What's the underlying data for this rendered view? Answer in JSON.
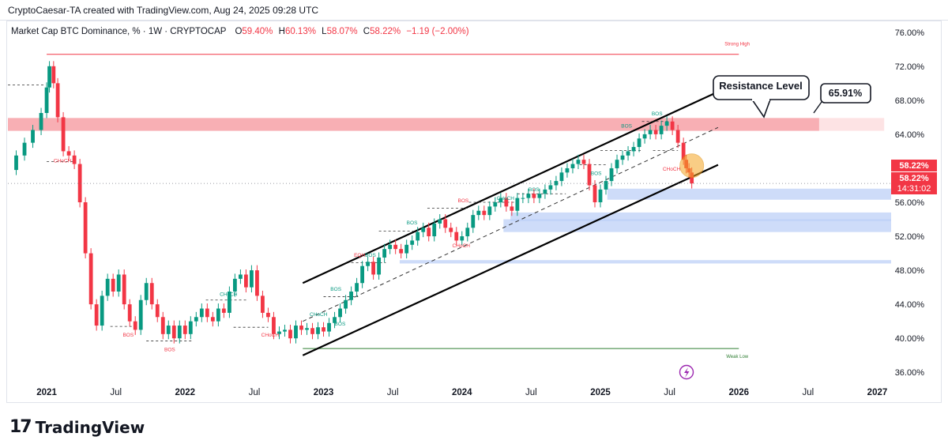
{
  "header": {
    "credit": "CryptoCaesar-TA created with TradingView.com, Aug 24, 2025 09:28 UTC"
  },
  "legend": {
    "symbol": "Market Cap BTC Dominance, % · 1W · CRYPTOCAP",
    "open_label": "O",
    "open": "59.40%",
    "high_label": "H",
    "high": "60.13%",
    "low_label": "L",
    "low": "58.07%",
    "close_label": "C",
    "close": "58.22%",
    "change": "−1.19 (−2.00%)"
  },
  "annotations": {
    "resistance_label": "Resistance Level",
    "resistance_value": "65.91%",
    "strong_high": "Strong High",
    "weak_low": "Weak Low",
    "price_tag_1": "58.22%",
    "price_tag_2": "58.22%",
    "countdown": "14:31:02",
    "structure_labels": [
      {
        "text": "CHoCH",
        "x": 2021.05,
        "y": 60.7,
        "color": "#f23645"
      },
      {
        "text": "BOS",
        "x": 2021.55,
        "y": 40.2,
        "color": "#f23645"
      },
      {
        "text": "BOS",
        "x": 2021.85,
        "y": 38.5,
        "color": "#f23645"
      },
      {
        "text": "CHoCH",
        "x": 2022.25,
        "y": 45.0,
        "color": "#089981"
      },
      {
        "text": "CHoCH",
        "x": 2022.55,
        "y": 40.2,
        "color": "#f23645"
      },
      {
        "text": "CHoCH",
        "x": 2022.9,
        "y": 42.6,
        "color": "#089981"
      },
      {
        "text": "BOS",
        "x": 2023.05,
        "y": 45.6,
        "color": "#089981"
      },
      {
        "text": "BOS",
        "x": 2023.08,
        "y": 41.5,
        "color": "#089981"
      },
      {
        "text": "EQH",
        "x": 2023.22,
        "y": 49.6,
        "color": "#f23645"
      },
      {
        "text": "BOS",
        "x": 2023.3,
        "y": 49.6,
        "color": "#089981"
      },
      {
        "text": "BOS",
        "x": 2023.6,
        "y": 53.4,
        "color": "#089981"
      },
      {
        "text": "BOS",
        "x": 2023.97,
        "y": 56.0,
        "color": "#f23645"
      },
      {
        "text": "CHoCH",
        "x": 2023.93,
        "y": 50.7,
        "color": "#f23645"
      },
      {
        "text": "CHoCH",
        "x": 2024.25,
        "y": 56.3,
        "color": "#089981"
      },
      {
        "text": "BOS",
        "x": 2024.48,
        "y": 57.3,
        "color": "#089981"
      },
      {
        "text": "BOS",
        "x": 2024.93,
        "y": 59.2,
        "color": "#089981"
      },
      {
        "text": "BOS",
        "x": 2025.15,
        "y": 64.8,
        "color": "#089981"
      },
      {
        "text": "BOS",
        "x": 2025.37,
        "y": 66.2,
        "color": "#089981"
      },
      {
        "text": "CHoCH",
        "x": 2025.45,
        "y": 59.7,
        "color": "#f23645"
      }
    ]
  },
  "icons": {
    "lightning": "lightning-icon",
    "logo": "tradingview-logo"
  },
  "footer": {
    "brand": "TradingView"
  },
  "colors": {
    "up": "#089981",
    "down": "#f23645",
    "resistance_zone": "#f7a1a7",
    "demand_zone": "#b9cdf7",
    "channel": "#000000",
    "strong_high_line": "#f23645",
    "weak_low_line": "#2e7d32",
    "highlight_circle": "#f5a623",
    "price_tag": "#f23645"
  },
  "chart_data": {
    "type": "line",
    "title": "Market Cap BTC Dominance, % · 1W · CRYPTOCAP",
    "xlabel": "",
    "ylabel": "",
    "xlim": [
      2020.72,
      2027.1
    ],
    "ylim": [
      35,
      77
    ],
    "x_ticks": [
      {
        "label": "2021",
        "x": 2021.0,
        "bold": true
      },
      {
        "label": "Jul",
        "x": 2021.5,
        "bold": false
      },
      {
        "label": "2022",
        "x": 2022.0,
        "bold": true
      },
      {
        "label": "Jul",
        "x": 2022.5,
        "bold": false
      },
      {
        "label": "2023",
        "x": 2023.0,
        "bold": true
      },
      {
        "label": "Jul",
        "x": 2023.5,
        "bold": false
      },
      {
        "label": "2024",
        "x": 2024.0,
        "bold": true
      },
      {
        "label": "Jul",
        "x": 2024.5,
        "bold": false
      },
      {
        "label": "2025",
        "x": 2025.0,
        "bold": true
      },
      {
        "label": "Jul",
        "x": 2025.5,
        "bold": false
      },
      {
        "label": "2026",
        "x": 2026.0,
        "bold": true
      },
      {
        "label": "Jul",
        "x": 2026.5,
        "bold": false
      },
      {
        "label": "2027",
        "x": 2027.0,
        "bold": true
      }
    ],
    "y_ticks": [
      "76.00%",
      "72.00%",
      "68.00%",
      "64.00%",
      "60.00%",
      "56.00%",
      "52.00%",
      "48.00%",
      "44.00%",
      "40.00%",
      "36.00%"
    ],
    "y_tick_values": [
      76,
      72,
      68,
      64,
      60,
      56,
      52,
      48,
      44,
      40,
      36
    ],
    "series": [
      {
        "points": [
          [
            2020.72,
            59.8
          ],
          [
            2020.78,
            61.5
          ],
          [
            2020.84,
            63.0
          ],
          [
            2020.9,
            64.5
          ],
          [
            2020.96,
            66.5
          ],
          [
            2021.0,
            69.5
          ],
          [
            2021.02,
            72.0
          ],
          [
            2021.05,
            70.0
          ],
          [
            2021.08,
            66.0
          ],
          [
            2021.12,
            62.0
          ],
          [
            2021.16,
            61.5
          ],
          [
            2021.2,
            60.5
          ],
          [
            2021.24,
            56.0
          ],
          [
            2021.28,
            50.0
          ],
          [
            2021.32,
            44.0
          ],
          [
            2021.36,
            41.5
          ],
          [
            2021.4,
            45.0
          ],
          [
            2021.44,
            47.0
          ],
          [
            2021.48,
            45.5
          ],
          [
            2021.52,
            47.5
          ],
          [
            2021.56,
            44.0
          ],
          [
            2021.6,
            42.0
          ],
          [
            2021.64,
            41.0
          ],
          [
            2021.68,
            44.5
          ],
          [
            2021.72,
            46.5
          ],
          [
            2021.76,
            44.0
          ],
          [
            2021.8,
            42.5
          ],
          [
            2021.84,
            40.5
          ],
          [
            2021.88,
            41.5
          ],
          [
            2021.92,
            40.0
          ],
          [
            2021.96,
            41.5
          ],
          [
            2022.0,
            40.5
          ],
          [
            2022.04,
            42.0
          ],
          [
            2022.08,
            42.5
          ],
          [
            2022.12,
            43.5
          ],
          [
            2022.16,
            42.5
          ],
          [
            2022.2,
            42.0
          ],
          [
            2022.24,
            43.5
          ],
          [
            2022.28,
            43.0
          ],
          [
            2022.32,
            45.5
          ],
          [
            2022.36,
            47.0
          ],
          [
            2022.4,
            47.5
          ],
          [
            2022.44,
            46.0
          ],
          [
            2022.48,
            48.0
          ],
          [
            2022.52,
            45.0
          ],
          [
            2022.56,
            43.0
          ],
          [
            2022.6,
            42.5
          ],
          [
            2022.64,
            40.5
          ],
          [
            2022.68,
            40.8
          ],
          [
            2022.72,
            41.0
          ],
          [
            2022.76,
            40.0
          ],
          [
            2022.8,
            41.5
          ],
          [
            2022.84,
            41.0
          ],
          [
            2022.88,
            41.2
          ],
          [
            2022.92,
            40.5
          ],
          [
            2022.96,
            41.3
          ],
          [
            2023.0,
            40.8
          ],
          [
            2023.04,
            41.8
          ],
          [
            2023.08,
            42.5
          ],
          [
            2023.12,
            43.5
          ],
          [
            2023.16,
            44.5
          ],
          [
            2023.2,
            45.5
          ],
          [
            2023.24,
            46.5
          ],
          [
            2023.28,
            48.5
          ],
          [
            2023.32,
            49.0
          ],
          [
            2023.36,
            47.5
          ],
          [
            2023.4,
            49.5
          ],
          [
            2023.44,
            50.5
          ],
          [
            2023.48,
            51.0
          ],
          [
            2023.52,
            50.5
          ],
          [
            2023.56,
            50.0
          ],
          [
            2023.6,
            51.0
          ],
          [
            2023.64,
            51.5
          ],
          [
            2023.68,
            52.5
          ],
          [
            2023.72,
            53.0
          ],
          [
            2023.76,
            52.0
          ],
          [
            2023.8,
            53.5
          ],
          [
            2023.84,
            54.0
          ],
          [
            2023.88,
            53.0
          ],
          [
            2023.92,
            52.5
          ],
          [
            2023.96,
            51.5
          ],
          [
            2024.0,
            52.0
          ],
          [
            2024.04,
            53.0
          ],
          [
            2024.08,
            54.5
          ],
          [
            2024.12,
            55.0
          ],
          [
            2024.16,
            54.5
          ],
          [
            2024.2,
            55.5
          ],
          [
            2024.24,
            56.0
          ],
          [
            2024.28,
            56.5
          ],
          [
            2024.32,
            55.5
          ],
          [
            2024.36,
            55.0
          ],
          [
            2024.4,
            56.5
          ],
          [
            2024.44,
            56.5
          ],
          [
            2024.48,
            57.0
          ],
          [
            2024.52,
            56.5
          ],
          [
            2024.56,
            57.0
          ],
          [
            2024.6,
            57.5
          ],
          [
            2024.64,
            58.0
          ],
          [
            2024.68,
            58.5
          ],
          [
            2024.72,
            59.5
          ],
          [
            2024.76,
            60.0
          ],
          [
            2024.8,
            60.5
          ],
          [
            2024.84,
            61.0
          ],
          [
            2024.88,
            60.5
          ],
          [
            2024.92,
            58.0
          ],
          [
            2024.96,
            56.0
          ],
          [
            2025.0,
            57.5
          ],
          [
            2025.04,
            58.5
          ],
          [
            2025.08,
            60.0
          ],
          [
            2025.12,
            61.0
          ],
          [
            2025.16,
            61.5
          ],
          [
            2025.2,
            62.0
          ],
          [
            2025.24,
            62.5
          ],
          [
            2025.28,
            63.5
          ],
          [
            2025.32,
            64.0
          ],
          [
            2025.36,
            64.5
          ],
          [
            2025.4,
            64.0
          ],
          [
            2025.44,
            65.0
          ],
          [
            2025.48,
            65.5
          ],
          [
            2025.52,
            64.5
          ],
          [
            2025.56,
            63.0
          ],
          [
            2025.6,
            61.0
          ],
          [
            2025.62,
            60.0
          ],
          [
            2025.64,
            59.5
          ],
          [
            2025.66,
            58.22
          ]
        ]
      }
    ],
    "zones": [
      {
        "name": "Resistance Level",
        "x0": 2020.72,
        "x1": 2026.58,
        "y0": 64.4,
        "y1": 65.91
      },
      {
        "name": "demand-1",
        "x0": 2025.05,
        "x1": 2027.1,
        "y0": 56.3,
        "y1": 57.6
      },
      {
        "name": "demand-2",
        "x0": 2024.35,
        "x1": 2027.1,
        "y0": 53.8,
        "y1": 54.8
      },
      {
        "name": "demand-3",
        "x0": 2024.3,
        "x1": 2027.1,
        "y0": 52.5,
        "y1": 54.0
      },
      {
        "name": "demand-4",
        "x0": 2023.55,
        "x1": 2027.1,
        "y0": 48.8,
        "y1": 49.2
      }
    ],
    "lines": {
      "strong_high": {
        "x0": 2021.0,
        "x1": 2026.0,
        "y": 73.4
      },
      "weak_low": {
        "x0": 2022.85,
        "x1": 2026.0,
        "y": 38.8
      },
      "channel_upper": {
        "x0": 2022.85,
        "y0": 46.5,
        "x1": 2025.85,
        "y1": 69.0
      },
      "channel_lower": {
        "x0": 2022.85,
        "y0": 38.0,
        "x1": 2025.85,
        "y1": 60.4
      },
      "channel_mid": {
        "x0": 2022.85,
        "y0": 42.0,
        "x1": 2025.85,
        "y1": 64.8
      }
    }
  }
}
